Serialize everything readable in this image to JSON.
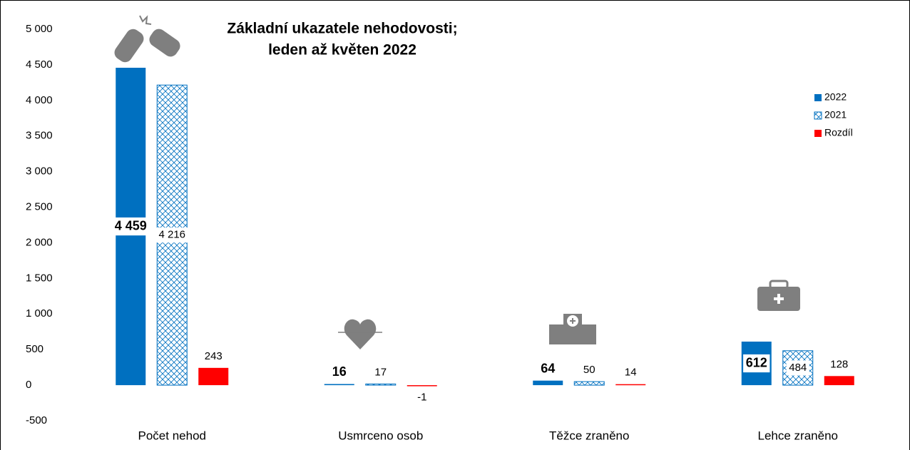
{
  "chart_data": {
    "type": "bar",
    "title": [
      "Základní ukazatele nehodovosti;",
      "leden až květen 2022"
    ],
    "categories": [
      "Počet nehod",
      "Usmrceno osob",
      "Těžce zraněno",
      "Lehce zraněno"
    ],
    "series": [
      {
        "name": "2022",
        "color": "#0070c0",
        "fill": "solid",
        "bold": true,
        "values": [
          4459,
          16,
          64,
          612
        ],
        "value_labels": [
          "4 459",
          "16",
          "64",
          "612"
        ]
      },
      {
        "name": "2021",
        "color": "#0070c0",
        "fill": "hatched",
        "values": [
          4216,
          17,
          50,
          484
        ],
        "value_labels": [
          "4 216",
          "17",
          "50",
          "484"
        ]
      },
      {
        "name": "Rozdíl",
        "color": "#ff0000",
        "fill": "solid",
        "values": [
          243,
          -1,
          14,
          128
        ]
      }
    ],
    "ylim": [
      -500,
      5000
    ],
    "yticks": [
      -500,
      0,
      500,
      {
        "value": 1000,
        "label": "1 000"
      },
      {
        "value": 1500,
        "label": "1 500"
      },
      {
        "value": 2000,
        "label": "2 000"
      },
      {
        "value": 2500,
        "label": "2 500"
      },
      {
        "value": 3000,
        "label": "3 000"
      },
      {
        "value": 3500,
        "label": "3 500"
      },
      {
        "value": 4000,
        "label": "4 000"
      },
      {
        "value": 4500,
        "label": "4 500"
      },
      {
        "value": 5000,
        "label": "5 000"
      }
    ],
    "grid": false,
    "legend": "right"
  }
}
